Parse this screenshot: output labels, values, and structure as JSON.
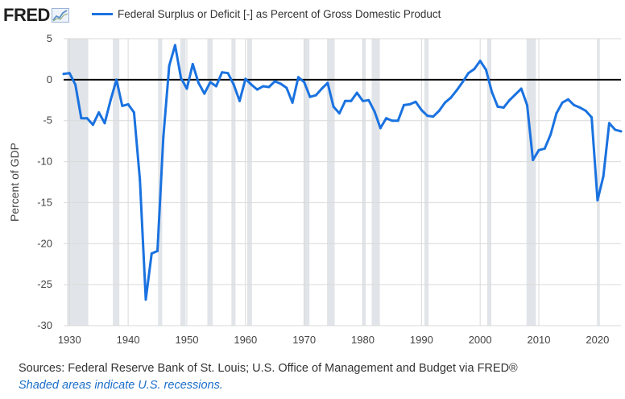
{
  "header": {
    "logo_text": "FRED",
    "legend_label": "Federal Surplus or Deficit [-] as Percent of Gross Domestic Product"
  },
  "footer": {
    "source": "Sources: Federal Reserve Bank of St. Louis; U.S. Office of Management and Budget via FRED®",
    "note": "Shaded areas indicate U.S. recessions."
  },
  "colors": {
    "series": "#1a72e0",
    "recession": "#e1e4e8",
    "zero_line": "#000000",
    "grid": "#d9d9d9"
  },
  "chart_data": {
    "type": "line",
    "title": "Federal Surplus or Deficit [-] as Percent of Gross Domestic Product",
    "xlabel": "",
    "ylabel": "Percent of GDP",
    "xlim": [
      1929,
      2024
    ],
    "ylim": [
      -30,
      5
    ],
    "x_ticks": [
      1930,
      1940,
      1950,
      1960,
      1970,
      1980,
      1990,
      2000,
      2010,
      2020
    ],
    "y_ticks": [
      5,
      0,
      -5,
      -10,
      -15,
      -20,
      -25,
      -30
    ],
    "y_tick_labels": [
      "5",
      "0",
      "-5",
      "-10",
      "-15",
      "-20",
      "-25",
      "-30"
    ],
    "zero_line": true,
    "recessions": [
      [
        1929.6,
        1933.2
      ],
      [
        1937.4,
        1938.5
      ],
      [
        1945.1,
        1945.8
      ],
      [
        1948.9,
        1949.8
      ],
      [
        1953.5,
        1954.4
      ],
      [
        1957.6,
        1958.3
      ],
      [
        1960.3,
        1961.1
      ],
      [
        1969.9,
        1970.9
      ],
      [
        1973.9,
        1975.2
      ],
      [
        1980.0,
        1980.5
      ],
      [
        1981.5,
        1982.9
      ],
      [
        1990.5,
        1991.2
      ],
      [
        2001.2,
        2001.9
      ],
      [
        2007.9,
        2009.5
      ],
      [
        2020.1,
        2020.4
      ]
    ],
    "series": [
      {
        "name": "Federal Surplus or Deficit [-] as Percent of Gross Domestic Product",
        "x": [
          1929,
          1930,
          1931,
          1932,
          1933,
          1934,
          1935,
          1936,
          1937,
          1938,
          1939,
          1940,
          1941,
          1942,
          1943,
          1944,
          1945,
          1946,
          1947,
          1948,
          1949,
          1950,
          1951,
          1952,
          1953,
          1954,
          1955,
          1956,
          1957,
          1958,
          1959,
          1960,
          1961,
          1962,
          1963,
          1964,
          1965,
          1966,
          1967,
          1968,
          1969,
          1970,
          1971,
          1972,
          1973,
          1974,
          1975,
          1976,
          1977,
          1978,
          1979,
          1980,
          1981,
          1982,
          1983,
          1984,
          1985,
          1986,
          1987,
          1988,
          1989,
          1990,
          1991,
          1992,
          1993,
          1994,
          1995,
          1996,
          1997,
          1998,
          1999,
          2000,
          2001,
          2002,
          2003,
          2004,
          2005,
          2006,
          2007,
          2008,
          2009,
          2010,
          2011,
          2012,
          2013,
          2014,
          2015,
          2016,
          2017,
          2018,
          2019,
          2020,
          2021,
          2022,
          2023,
          2024
        ],
        "values": [
          0.7,
          0.8,
          -0.6,
          -4.7,
          -4.7,
          -5.5,
          -4.0,
          -5.3,
          -2.5,
          0.0,
          -3.2,
          -3.0,
          -4.0,
          -12.2,
          -26.8,
          -21.2,
          -20.9,
          -7.0,
          1.7,
          4.2,
          0.2,
          -1.1,
          1.9,
          -0.4,
          -1.7,
          -0.3,
          -0.8,
          0.9,
          0.8,
          -0.6,
          -2.6,
          0.1,
          -0.6,
          -1.2,
          -0.8,
          -0.9,
          -0.2,
          -0.5,
          -1.0,
          -2.8,
          0.3,
          -0.3,
          -2.1,
          -1.9,
          -1.1,
          -0.4,
          -3.3,
          -4.1,
          -2.6,
          -2.6,
          -1.6,
          -2.6,
          -2.5,
          -3.9,
          -5.9,
          -4.7,
          -5.0,
          -5.0,
          -3.1,
          -3.0,
          -2.7,
          -3.7,
          -4.4,
          -4.5,
          -3.8,
          -2.8,
          -2.2,
          -1.3,
          -0.3,
          0.8,
          1.3,
          2.3,
          1.2,
          -1.5,
          -3.3,
          -3.4,
          -2.5,
          -1.8,
          -1.1,
          -3.1,
          -9.8,
          -8.6,
          -8.4,
          -6.7,
          -4.1,
          -2.8,
          -2.4,
          -3.1,
          -3.4,
          -3.8,
          -4.6,
          -14.7,
          -11.8,
          -5.3,
          -6.1,
          -6.3
        ]
      }
    ]
  }
}
